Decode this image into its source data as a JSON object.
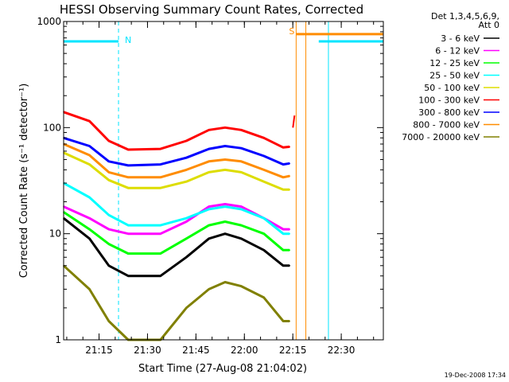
{
  "chart_data": {
    "type": "line",
    "title": "HESSI Observing Summary Count Rates, Corrected",
    "xlabel": "Start Time (27-Aug-08 21:04:02)",
    "ylabel": "Corrected Count Rate (s⁻¹ detector⁻¹)",
    "yscale": "log",
    "ylim": [
      1,
      1000
    ],
    "xlim_minutes_after_start": [
      0,
      99
    ],
    "x_tick_labels": [
      "21:15",
      "21:30",
      "21:45",
      "22:00",
      "22:15",
      "22:30"
    ],
    "y_tick_labels": [
      "1",
      "10",
      "100",
      "1000"
    ],
    "legend_header": [
      "Det 1,3,4,5,6,9,",
      "Att 0"
    ],
    "legend_placement": "right",
    "grid": false,
    "x_unit": "minutes after 21:04:02",
    "series": [
      {
        "name": "3 - 6 keV",
        "color": "#000000",
        "values": [
          [
            0,
            14
          ],
          [
            8,
            9
          ],
          [
            14,
            5
          ],
          [
            20,
            4
          ],
          [
            30,
            4
          ],
          [
            38,
            6
          ],
          [
            45,
            9
          ],
          [
            50,
            10
          ],
          [
            55,
            9
          ],
          [
            62,
            7
          ],
          [
            68,
            5
          ],
          [
            70,
            5
          ]
        ]
      },
      {
        "name": "6 - 12 keV",
        "color": "#ff00ff",
        "values": [
          [
            0,
            18
          ],
          [
            8,
            14
          ],
          [
            14,
            11
          ],
          [
            20,
            10
          ],
          [
            30,
            10
          ],
          [
            38,
            13
          ],
          [
            45,
            18
          ],
          [
            50,
            19
          ],
          [
            55,
            18
          ],
          [
            62,
            14
          ],
          [
            68,
            11
          ],
          [
            70,
            11
          ]
        ]
      },
      {
        "name": "12 - 25 keV",
        "color": "#00ff00",
        "values": [
          [
            0,
            16
          ],
          [
            8,
            11
          ],
          [
            14,
            8
          ],
          [
            20,
            6.5
          ],
          [
            30,
            6.5
          ],
          [
            38,
            9
          ],
          [
            45,
            12
          ],
          [
            50,
            13
          ],
          [
            55,
            12
          ],
          [
            62,
            10
          ],
          [
            68,
            7
          ],
          [
            70,
            7
          ]
        ]
      },
      {
        "name": "25 - 50 keV",
        "color": "#00ffff",
        "values": [
          [
            0,
            30
          ],
          [
            8,
            22
          ],
          [
            14,
            15
          ],
          [
            20,
            12
          ],
          [
            30,
            12
          ],
          [
            38,
            14
          ],
          [
            45,
            17
          ],
          [
            50,
            18
          ],
          [
            55,
            17
          ],
          [
            62,
            14
          ],
          [
            68,
            10
          ],
          [
            70,
            10
          ]
        ]
      },
      {
        "name": "50 - 100 keV",
        "color": "#dddd00",
        "values": [
          [
            0,
            58
          ],
          [
            8,
            45
          ],
          [
            14,
            32
          ],
          [
            20,
            27
          ],
          [
            30,
            27
          ],
          [
            38,
            31
          ],
          [
            45,
            38
          ],
          [
            50,
            40
          ],
          [
            55,
            38
          ],
          [
            62,
            31
          ],
          [
            68,
            26
          ],
          [
            70,
            26
          ]
        ]
      },
      {
        "name": "100 - 300 keV",
        "color": "#ff0000",
        "values": [
          [
            0,
            140
          ],
          [
            8,
            115
          ],
          [
            14,
            75
          ],
          [
            20,
            62
          ],
          [
            30,
            63
          ],
          [
            38,
            75
          ],
          [
            45,
            95
          ],
          [
            50,
            100
          ],
          [
            55,
            95
          ],
          [
            62,
            80
          ],
          [
            68,
            65
          ],
          [
            70,
            66
          ]
        ]
      },
      {
        "name": "300 - 800 keV",
        "color": "#0000ff",
        "values": [
          [
            0,
            80
          ],
          [
            8,
            67
          ],
          [
            14,
            48
          ],
          [
            20,
            44
          ],
          [
            30,
            45
          ],
          [
            38,
            52
          ],
          [
            45,
            63
          ],
          [
            50,
            67
          ],
          [
            55,
            64
          ],
          [
            62,
            54
          ],
          [
            68,
            45
          ],
          [
            70,
            46
          ]
        ]
      },
      {
        "name": "800 - 7000 keV",
        "color": "#ff8c00",
        "values": [
          [
            0,
            70
          ],
          [
            8,
            55
          ],
          [
            14,
            38
          ],
          [
            20,
            34
          ],
          [
            30,
            34
          ],
          [
            38,
            40
          ],
          [
            45,
            48
          ],
          [
            50,
            50
          ],
          [
            55,
            48
          ],
          [
            62,
            40
          ],
          [
            68,
            34
          ],
          [
            70,
            35
          ]
        ]
      },
      {
        "name": "7000 - 20000 keV",
        "color": "#808000",
        "values": [
          [
            0,
            5
          ],
          [
            8,
            3
          ],
          [
            14,
            1.5
          ],
          [
            20,
            1
          ],
          [
            30,
            1
          ],
          [
            38,
            2
          ],
          [
            45,
            3
          ],
          [
            50,
            3.5
          ],
          [
            55,
            3.2
          ],
          [
            62,
            2.5
          ],
          [
            68,
            1.5
          ],
          [
            70,
            1.5
          ]
        ]
      }
    ],
    "flags": [
      {
        "label": "N",
        "color": "#00e5ff",
        "level": 650,
        "segments": [
          [
            0,
            17
          ],
          [
            79,
            99
          ]
        ],
        "vlines": [
          17,
          82,
          99
        ]
      },
      {
        "label": "S",
        "color": "#ff8c00",
        "level": 760,
        "segments": [
          [
            72,
            99
          ]
        ],
        "vlines": [
          72,
          75
        ]
      }
    ]
  },
  "footer": {
    "timestamp": "19-Dec-2008 17:34"
  }
}
